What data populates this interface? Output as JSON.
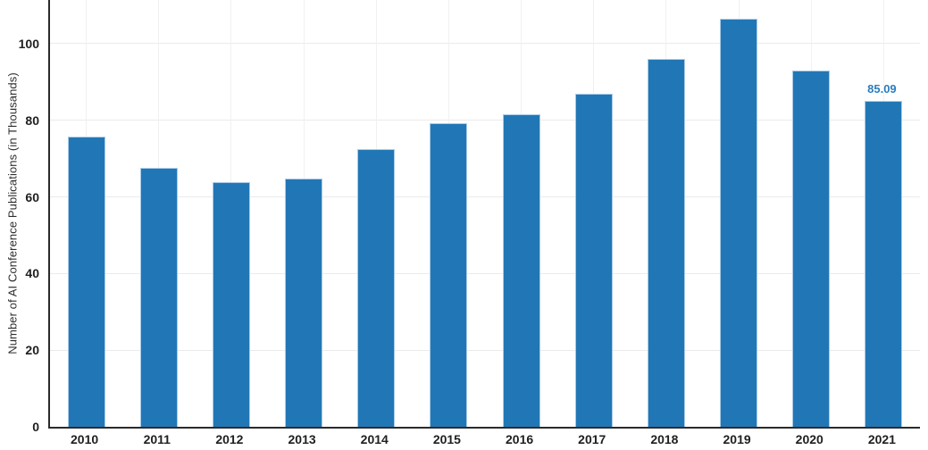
{
  "chart_data": {
    "type": "bar",
    "title": "",
    "categories": [
      "2010",
      "2011",
      "2012",
      "2013",
      "2014",
      "2015",
      "2016",
      "2017",
      "2018",
      "2019",
      "2020",
      "2021"
    ],
    "values": [
      75.72,
      67.66,
      63.79,
      64.85,
      72.55,
      79.26,
      81.51,
      86.95,
      96.06,
      106.55,
      92.99,
      85.09
    ],
    "xlabel": "",
    "ylabel": "Number of AI Conference Publications (in Thousands)",
    "ylim": [
      0,
      111.4
    ],
    "yticks": [
      0,
      20,
      40,
      60,
      80,
      100
    ],
    "grid": "on",
    "legend": "none",
    "annotation": {
      "text": "85.09",
      "category": "2021"
    },
    "colors": {
      "bar": "#2177b5",
      "bar_edge": "#a9cbe8",
      "axis": "#2b2b2b",
      "grid_horizontal": "#ebebeb",
      "grid_vertical": "#f1f1f1",
      "tick_label": "#1f1f1f",
      "axis_title": "#2e2e2e",
      "annotation": "#2b7dbf"
    }
  }
}
